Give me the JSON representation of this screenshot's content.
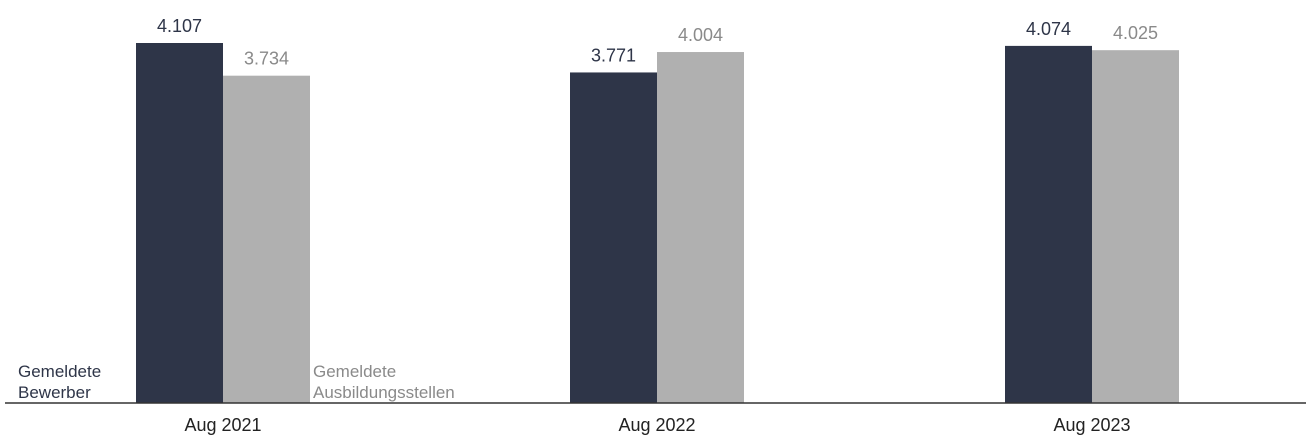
{
  "chart_data": {
    "type": "bar",
    "categories": [
      "Aug 2021",
      "Aug 2022",
      "Aug 2023"
    ],
    "series": [
      {
        "name": "Gemeldete Bewerber",
        "name_lines": [
          "Gemeldete",
          "Bewerber"
        ],
        "values": [
          4107,
          3771,
          4074
        ],
        "labels": [
          "4.107",
          "3.771",
          "4.074"
        ],
        "color": "#2e3548",
        "label_color": "#2e3548"
      },
      {
        "name": "Gemeldete Ausbildungsstellen",
        "name_lines": [
          "Gemeldete",
          "Ausbildungsstellen"
        ],
        "values": [
          3734,
          4004,
          4025
        ],
        "labels": [
          "3.734",
          "4.004",
          "4.025"
        ],
        "color": "#b0b0b0",
        "label_color": "#8a8a8a"
      }
    ],
    "ylim": [
      0,
      4107
    ],
    "grid": false,
    "legend_placement": "inline-bottom",
    "axis_color": "#333333"
  }
}
